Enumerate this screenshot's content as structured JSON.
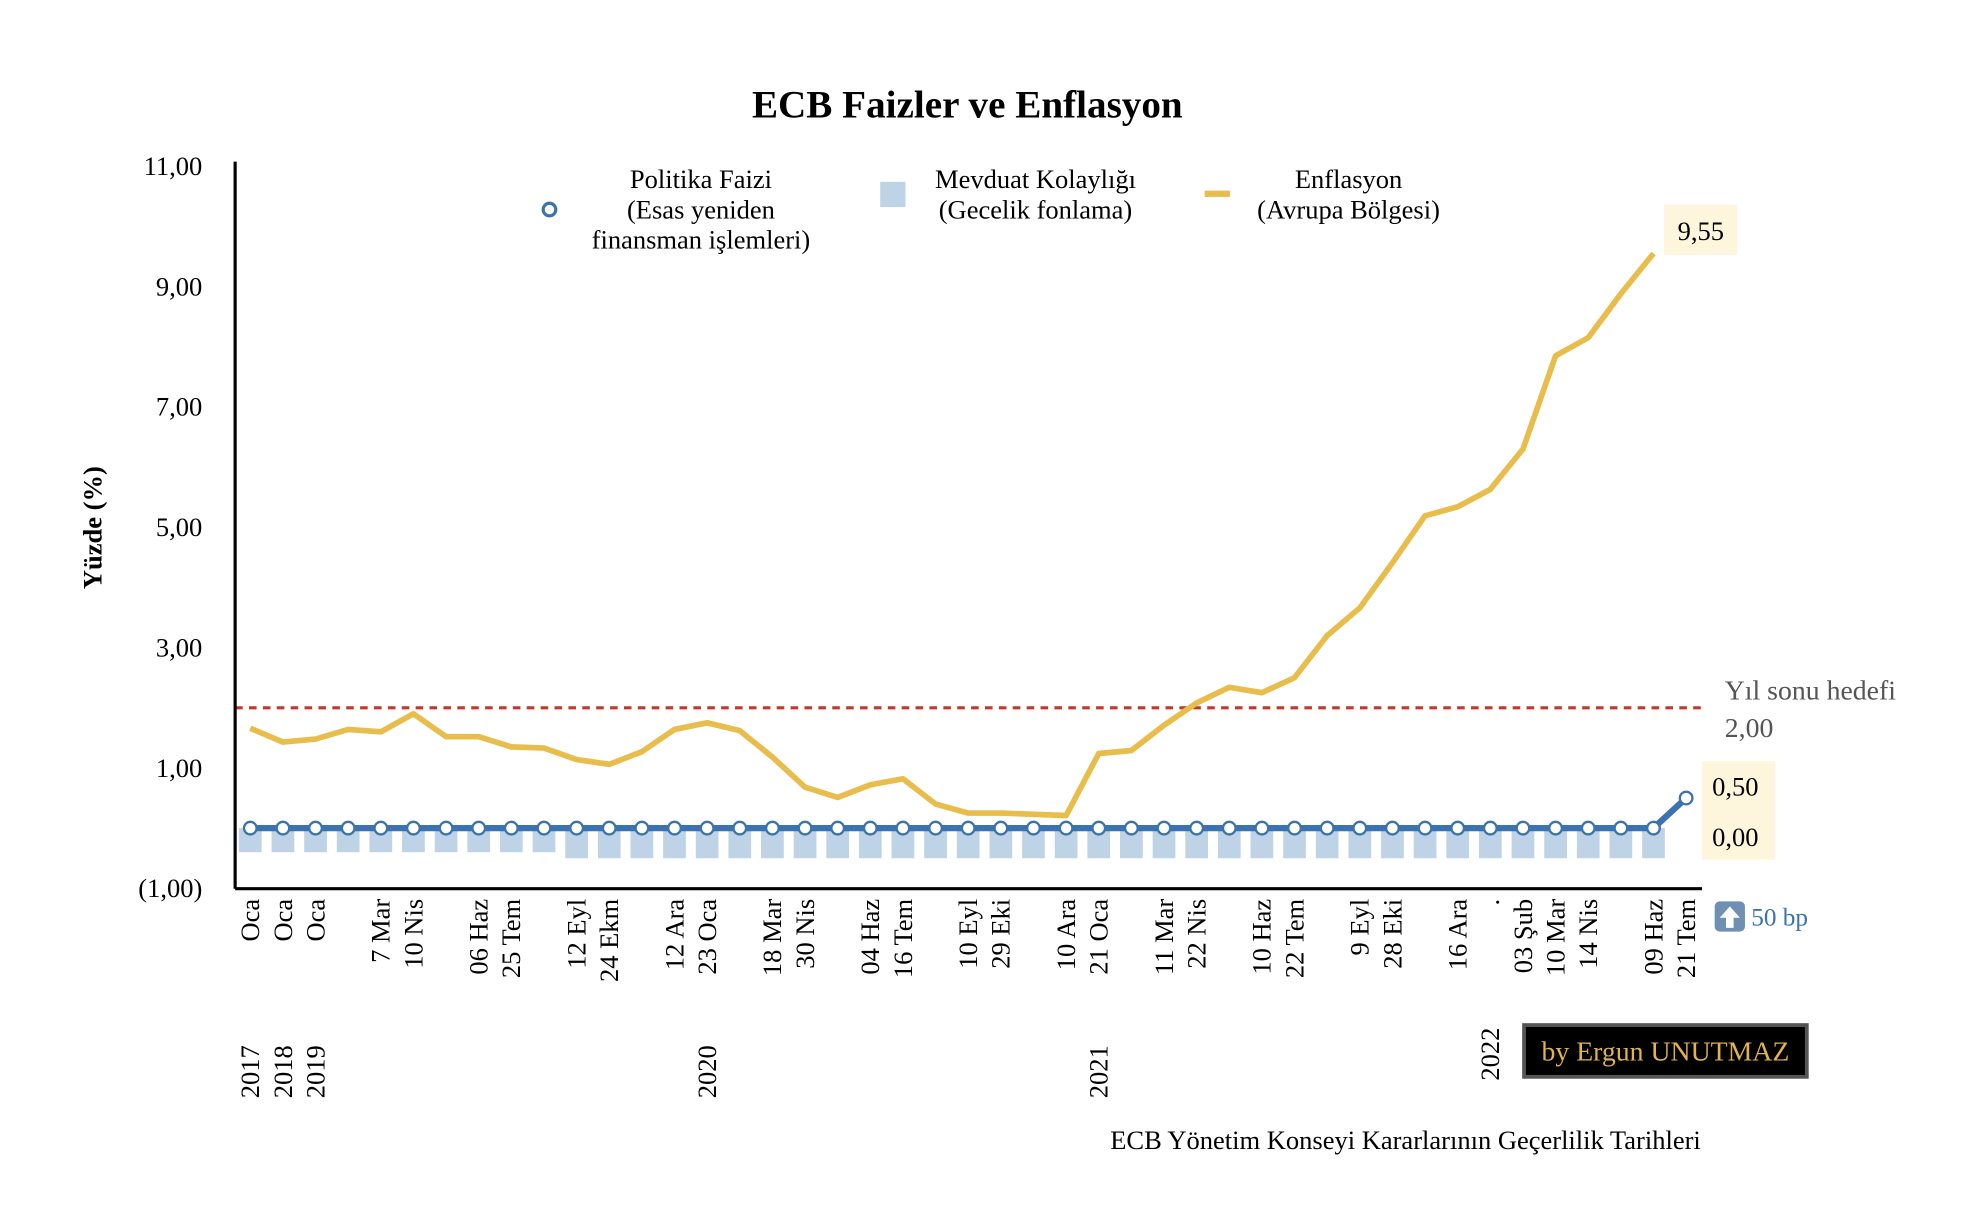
{
  "chart_data": {
    "type": "line",
    "title": "ECB Faizler ve Enflasyon",
    "ylabel": "Yüzde (%)",
    "xlabel": "ECB Yönetim Konseyi Kararlarının Geçerlilik Tarihleri",
    "ylim": [
      -1,
      11
    ],
    "yticks": [
      -1,
      1,
      3,
      5,
      7,
      9,
      11
    ],
    "ytick_labels": [
      "(1,00)",
      "1,00",
      "3,00",
      "5,00",
      "7,00",
      "9,00",
      "11,00"
    ],
    "categories": [
      "Oca",
      "Oca",
      "Oca",
      "",
      "7 Mar",
      "10 Nis",
      "",
      "06 Haz",
      "25 Tem",
      "",
      "12  Eyl",
      "24 Ekm",
      "",
      "12 Ara",
      "23 Oca",
      "",
      "18 Mar",
      "30 Nis",
      "",
      "04 Haz",
      "16 Tem",
      "",
      "10 Eyl",
      "29 Eki",
      "",
      "10 Ara",
      "21 Oca",
      "",
      "11 Mar",
      "22 Nis",
      "",
      "10 Haz",
      "22 Tem",
      "",
      "9 Eyl",
      "28 Eki",
      "",
      "16 Ara",
      ".",
      "03 Şub",
      "10 Mar",
      "14 Nis",
      "",
      "09 Haz",
      "21 Tem"
    ],
    "year_labels": [
      {
        "index": 0,
        "label": "2017"
      },
      {
        "index": 1,
        "label": "2018"
      },
      {
        "index": 2,
        "label": "2019"
      },
      {
        "index": 14,
        "label": "2020"
      },
      {
        "index": 26,
        "label": "2021"
      },
      {
        "index": 38,
        "label": "2022"
      }
    ],
    "series": [
      {
        "name": "Politika Faizi (Esas yeniden finansman işlemleri)",
        "type": "line-marker",
        "color": "#3a73b0",
        "values": [
          0,
          0,
          0,
          0,
          0,
          0,
          0,
          0,
          0,
          0,
          0,
          0,
          0,
          0,
          0,
          0,
          0,
          0,
          0,
          0,
          0,
          0,
          0,
          0,
          0,
          0,
          0,
          0,
          0,
          0,
          0,
          0,
          0,
          0,
          0,
          0,
          0,
          0,
          0,
          0,
          0,
          0,
          0,
          0,
          0.5
        ]
      },
      {
        "name": "Mevduat Kolaylığı (Gecelik fonlama)",
        "type": "bar",
        "color": "#bfd3e6",
        "values": [
          -0.4,
          -0.4,
          -0.4,
          -0.4,
          -0.4,
          -0.4,
          -0.4,
          -0.4,
          -0.4,
          -0.4,
          -0.5,
          -0.5,
          -0.5,
          -0.5,
          -0.5,
          -0.5,
          -0.5,
          -0.5,
          -0.5,
          -0.5,
          -0.5,
          -0.5,
          -0.5,
          -0.5,
          -0.5,
          -0.5,
          -0.5,
          -0.5,
          -0.5,
          -0.5,
          -0.5,
          -0.5,
          -0.5,
          -0.5,
          -0.5,
          -0.5,
          -0.5,
          -0.5,
          -0.5,
          -0.5,
          -0.5,
          -0.5,
          -0.5,
          -0.5,
          null
        ]
      },
      {
        "name": "Enflasyon (Avrupa Bölgesi)",
        "type": "line",
        "color": "#e9bd4c",
        "values": [
          1.66,
          1.43,
          1.48,
          1.64,
          1.6,
          1.9,
          1.52,
          1.52,
          1.35,
          1.33,
          1.14,
          1.06,
          1.27,
          1.64,
          1.75,
          1.62,
          1.18,
          0.68,
          0.51,
          0.72,
          0.82,
          0.4,
          0.25,
          0.25,
          0.23,
          0.21,
          1.24,
          1.29,
          1.71,
          2.08,
          2.34,
          2.25,
          2.5,
          3.2,
          3.66,
          4.41,
          5.19,
          5.34,
          5.63,
          6.3,
          7.85,
          8.15,
          8.88,
          9.55,
          null
        ]
      }
    ],
    "legend": {
      "placement": "top",
      "items": [
        {
          "lines": [
            "Politika Faizi",
            "(Esas yeniden",
            "finansman işlemleri)"
          ]
        },
        {
          "lines": [
            "Mevduat Kolaylığı",
            "(Gecelik fonlama)"
          ]
        },
        {
          "lines": [
            "Enflasyon",
            "(Avrupa Bölgesi)"
          ]
        }
      ]
    },
    "target_line": {
      "value": 2.0,
      "color": "#c0392b",
      "label_line1": "Yıl sonu hedefi",
      "label_line2": "2,00"
    },
    "annotations": {
      "last_inflation": "9,55",
      "policy_new": "0,50",
      "policy_old": "0,00",
      "change": "50 bp"
    },
    "credit": "by Ergun UNUTMAZ"
  }
}
